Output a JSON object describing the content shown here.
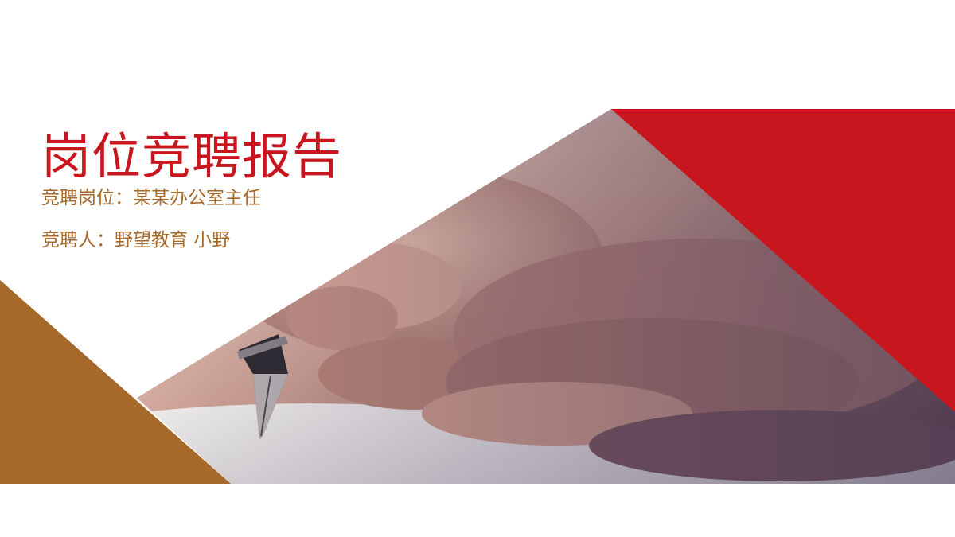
{
  "slide": {
    "title": "岗位竞聘报告",
    "position_line": "竞聘岗位：某某办公室主任",
    "applicant_line": "竞聘人：野望教育 小野"
  },
  "colors": {
    "title_red": "#c8161e",
    "subtitle_brown": "#a6692a",
    "red_band": "#c8161e",
    "brown_triangle": "#a6692a",
    "background": "#ffffff"
  },
  "image": {
    "subject": "hand-writing-with-fountain-pen-photo"
  }
}
